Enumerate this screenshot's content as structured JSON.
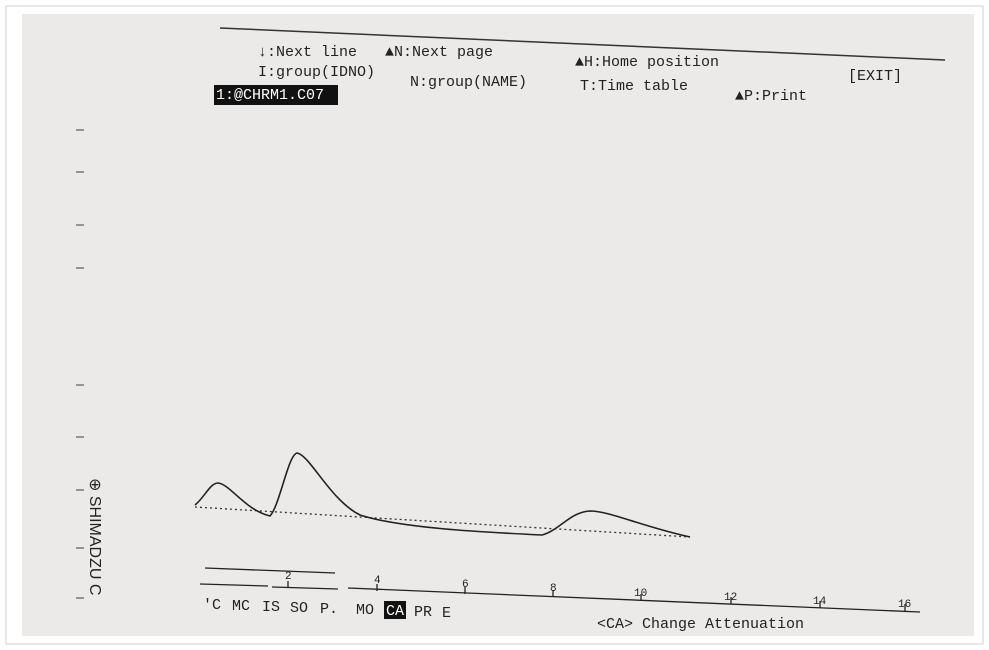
{
  "menu": {
    "items": [
      "↓:Next line",
      "▲N:Next page",
      "▲H:Home position",
      "[EXIT]",
      "I:group(IDNO)",
      "N:group(NAME)",
      "T:Time table",
      "▲P:Print"
    ]
  },
  "file_label": "1:@CHRM1.C07",
  "axis": {
    "tick_labels": [
      "2",
      "4",
      "6",
      "8",
      "10",
      "12",
      "14",
      "16"
    ]
  },
  "function_keys": [
    "'C",
    "MC",
    "IS",
    "SO",
    "P.",
    "MO",
    "CA",
    "PR",
    "E"
  ],
  "status": "<CA> Change Attenuation",
  "side_label": "⊕ SHIMADZU C"
}
